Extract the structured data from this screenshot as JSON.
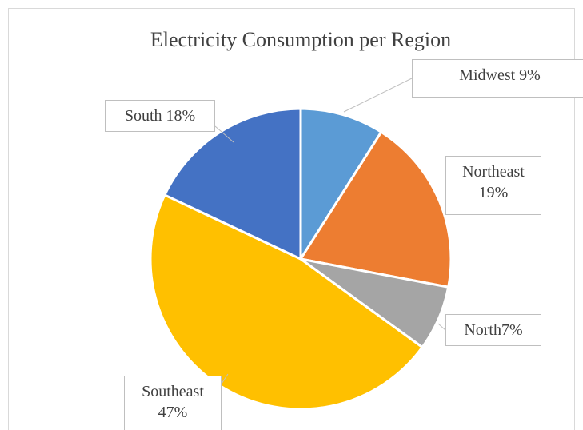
{
  "chart_data": {
    "type": "pie",
    "title": "Electricity Consumption per Region",
    "values": [
      9,
      19,
      7,
      47,
      18
    ],
    "value_labels": [
      "Midwest 9%",
      "Northeast 19%",
      "North7%",
      "Southeast 47%",
      "South 18%"
    ],
    "colors": [
      "#5b9bd5",
      "#ed7d31",
      "#a5a5a5",
      "#ffc000",
      "#4472c4"
    ]
  }
}
